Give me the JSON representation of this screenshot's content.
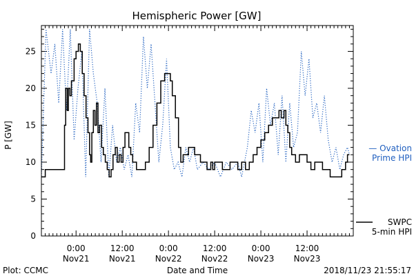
{
  "chart_data": {
    "type": "line",
    "title": "Hemispheric Power [GW]",
    "ylabel": "P [GW]",
    "xlabel": "Date and Time",
    "ylim": [
      0,
      28.5
    ],
    "xlim_hours": [
      -9,
      72
    ],
    "yticks": [
      0,
      5,
      10,
      15,
      20,
      25
    ],
    "xticks": [
      {
        "hour": 0,
        "time": "0:00",
        "date": "Nov21"
      },
      {
        "hour": 12,
        "time": "12:00",
        "date": "Nov21"
      },
      {
        "hour": 24,
        "time": "0:00",
        "date": "Nov22"
      },
      {
        "hour": 36,
        "time": "12:00",
        "date": "Nov22"
      },
      {
        "hour": 48,
        "time": "0:00",
        "date": "Nov23"
      },
      {
        "hour": 60,
        "time": "12:00",
        "date": "Nov23"
      }
    ],
    "grid": false,
    "series": [
      {
        "name": "SWPC 5-min HPI",
        "legend_lines": [
          "SWPC",
          "5-min HPI"
        ],
        "color": "#000000",
        "style": "solid",
        "points": [
          [
            -10,
            8
          ],
          [
            -9,
            8
          ],
          [
            -8,
            9
          ],
          [
            -6,
            9
          ],
          [
            -4,
            9
          ],
          [
            -3,
            15
          ],
          [
            -2.7,
            20
          ],
          [
            -2.3,
            17
          ],
          [
            -2,
            20
          ],
          [
            -1.6,
            19
          ],
          [
            -1.2,
            21
          ],
          [
            -0.5,
            24
          ],
          [
            0,
            25
          ],
          [
            0.6,
            26
          ],
          [
            1.1,
            25
          ],
          [
            1.6,
            22
          ],
          [
            2.1,
            19
          ],
          [
            2.6,
            16
          ],
          [
            3.1,
            14
          ],
          [
            3.5,
            11
          ],
          [
            3.8,
            10
          ],
          [
            4.1,
            14
          ],
          [
            4.5,
            17
          ],
          [
            4.9,
            15
          ],
          [
            5.3,
            18
          ],
          [
            5.7,
            14
          ],
          [
            6.1,
            15
          ],
          [
            6.6,
            12
          ],
          [
            7.1,
            11
          ],
          [
            7.6,
            10
          ],
          [
            8.1,
            9
          ],
          [
            8.6,
            8
          ],
          [
            9.1,
            9
          ],
          [
            9.6,
            11
          ],
          [
            10.2,
            12
          ],
          [
            10.7,
            10
          ],
          [
            11.2,
            11
          ],
          [
            11.7,
            10
          ],
          [
            12.2,
            12
          ],
          [
            12.7,
            14
          ],
          [
            13.2,
            14
          ],
          [
            13.7,
            12
          ],
          [
            14.2,
            11
          ],
          [
            14.7,
            10
          ],
          [
            15.2,
            10
          ],
          [
            15.7,
            9
          ],
          [
            17,
            9
          ],
          [
            18,
            10
          ],
          [
            19,
            12
          ],
          [
            20,
            15
          ],
          [
            21,
            18
          ],
          [
            22,
            21
          ],
          [
            23,
            22
          ],
          [
            24,
            22
          ],
          [
            24.5,
            21
          ],
          [
            25,
            19
          ],
          [
            25.8,
            16
          ],
          [
            26.6,
            12
          ],
          [
            27.2,
            10
          ],
          [
            27.8,
            11
          ],
          [
            28.5,
            11
          ],
          [
            29.2,
            12
          ],
          [
            30,
            12
          ],
          [
            30.8,
            11
          ],
          [
            31.6,
            11
          ],
          [
            32.3,
            10
          ],
          [
            33.5,
            10
          ],
          [
            34,
            9
          ],
          [
            35,
            10
          ],
          [
            35.5,
            9
          ],
          [
            36,
            10
          ],
          [
            37,
            10
          ],
          [
            38,
            9
          ],
          [
            39,
            9
          ],
          [
            40,
            10
          ],
          [
            41,
            10
          ],
          [
            42,
            9
          ],
          [
            43,
            10
          ],
          [
            44,
            9
          ],
          [
            45,
            10
          ],
          [
            46,
            11
          ],
          [
            47,
            12
          ],
          [
            48,
            13
          ],
          [
            49,
            14
          ],
          [
            50,
            15
          ],
          [
            51,
            16
          ],
          [
            52,
            16
          ],
          [
            52.7,
            17
          ],
          [
            53.3,
            16
          ],
          [
            54,
            17
          ],
          [
            54.5,
            15
          ],
          [
            55,
            14
          ],
          [
            55.5,
            12
          ],
          [
            56,
            11
          ],
          [
            57,
            10
          ],
          [
            58,
            11
          ],
          [
            59,
            11
          ],
          [
            60,
            10
          ],
          [
            61,
            9
          ],
          [
            62,
            10
          ],
          [
            63,
            10
          ],
          [
            64,
            9
          ],
          [
            65,
            9
          ],
          [
            66,
            8
          ],
          [
            68,
            8
          ],
          [
            69,
            9
          ],
          [
            70,
            10
          ],
          [
            70.5,
            11
          ],
          [
            71,
            11
          ]
        ]
      },
      {
        "name": "Ovation Prime HPI",
        "legend_lines": [
          "— Ovation",
          "Prime HPI"
        ],
        "color": "#1f5fbf",
        "style": "dotted",
        "points": [
          [
            -10,
            12
          ],
          [
            -9.5,
            10
          ],
          [
            -9,
            8
          ],
          [
            -7.8,
            28
          ],
          [
            -6.5,
            22
          ],
          [
            -5.5,
            26
          ],
          [
            -4.5,
            18
          ],
          [
            -3.5,
            28
          ],
          [
            -2.5,
            17
          ],
          [
            -1.5,
            28
          ],
          [
            -0.5,
            13
          ],
          [
            0.5,
            20
          ],
          [
            1.5,
            25
          ],
          [
            2.5,
            8
          ],
          [
            3.5,
            28
          ],
          [
            4.5,
            22
          ],
          [
            5.5,
            18
          ],
          [
            6.5,
            10
          ],
          [
            7.5,
            20
          ],
          [
            8.5,
            8
          ],
          [
            9.5,
            15
          ],
          [
            10.5,
            10
          ],
          [
            11.5,
            12
          ],
          [
            12.5,
            9
          ],
          [
            13.5,
            11
          ],
          [
            14.5,
            8
          ],
          [
            15.5,
            18
          ],
          [
            16.5,
            14
          ],
          [
            17.5,
            27
          ],
          [
            18.5,
            20
          ],
          [
            19.5,
            26
          ],
          [
            20.5,
            18
          ],
          [
            21.5,
            10
          ],
          [
            22.5,
            15
          ],
          [
            23.5,
            24
          ],
          [
            24.5,
            12
          ],
          [
            25.5,
            9
          ],
          [
            26.5,
            10
          ],
          [
            27.5,
            8
          ],
          [
            28.5,
            12
          ],
          [
            29.5,
            10
          ],
          [
            30.5,
            12
          ],
          [
            31.5,
            9
          ],
          [
            33,
            10
          ],
          [
            34.5,
            9
          ],
          [
            36,
            10
          ],
          [
            37.5,
            8
          ],
          [
            39,
            10
          ],
          [
            40.5,
            9
          ],
          [
            42,
            10
          ],
          [
            43,
            8
          ],
          [
            44.5,
            12
          ],
          [
            45.5,
            17
          ],
          [
            46.5,
            14
          ],
          [
            47.5,
            18
          ],
          [
            48.5,
            10
          ],
          [
            49.5,
            20
          ],
          [
            50.5,
            15
          ],
          [
            51.5,
            18
          ],
          [
            52.5,
            11
          ],
          [
            53.5,
            19
          ],
          [
            54.5,
            10
          ],
          [
            55.5,
            18
          ],
          [
            56.5,
            12
          ],
          [
            57.5,
            14
          ],
          [
            58.5,
            25
          ],
          [
            59.5,
            19
          ],
          [
            60.5,
            24
          ],
          [
            61.5,
            16
          ],
          [
            62.5,
            18
          ],
          [
            63.5,
            14
          ],
          [
            64.5,
            19
          ],
          [
            65.5,
            13
          ],
          [
            66.5,
            10
          ],
          [
            67.5,
            12
          ],
          [
            68.5,
            9
          ],
          [
            69.5,
            11
          ],
          [
            70.5,
            12
          ],
          [
            71,
            11
          ]
        ]
      }
    ]
  },
  "footer": {
    "plot_credit": "Plot: CCMC",
    "timestamp": "2018/11/23 21:55:17"
  }
}
